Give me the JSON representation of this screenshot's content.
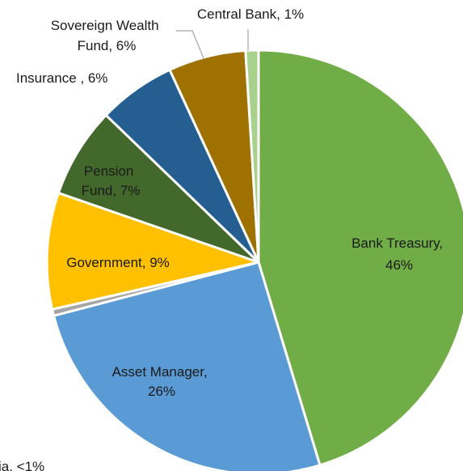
{
  "chart_data": {
    "type": "pie",
    "title": "",
    "slices": [
      {
        "label": "Bank Treasury,",
        "pct_text": "46%",
        "value": 46,
        "color": "#70ad47"
      },
      {
        "label": "Asset Manager,",
        "pct_text": "26%",
        "value": 26,
        "color": "#5b9bd5"
      },
      {
        "label": "Other Public/Quasi/Supra/Agencies,",
        "pct_text": "<1%",
        "value": 0.5,
        "color": "#a5a5a5"
      },
      {
        "label": "Government,",
        "pct_text": "9%",
        "value": 9,
        "color": "#ffc000"
      },
      {
        "label": "Pension Fund,",
        "pct_text": "7%",
        "value": 7,
        "color": "#43682b"
      },
      {
        "label": "Insurance ,",
        "pct_text": "6%",
        "value": 6,
        "color": "#255e91"
      },
      {
        "label": "Sovereign Wealth Fund,",
        "pct_text": "6%",
        "value": 6,
        "color": "#9e7100"
      },
      {
        "label": "Central Bank,",
        "pct_text": "1%",
        "value": 1,
        "color": "#a9d18e"
      }
    ],
    "visible_labels": {
      "bank_treasury": [
        "Bank Treasury,",
        "46%"
      ],
      "asset_manager": [
        "Asset Manager,",
        "26%"
      ],
      "government": "Government,  9%",
      "pension_fund": [
        "Pension",
        "Fund, 7%"
      ],
      "insurance": "Insurance , 6%",
      "sovereign_wealth_fund": [
        "Sovereign Wealth",
        "Fund, 6%"
      ],
      "central_bank": "Central Bank, 1%",
      "other": "ia, <1%"
    }
  }
}
